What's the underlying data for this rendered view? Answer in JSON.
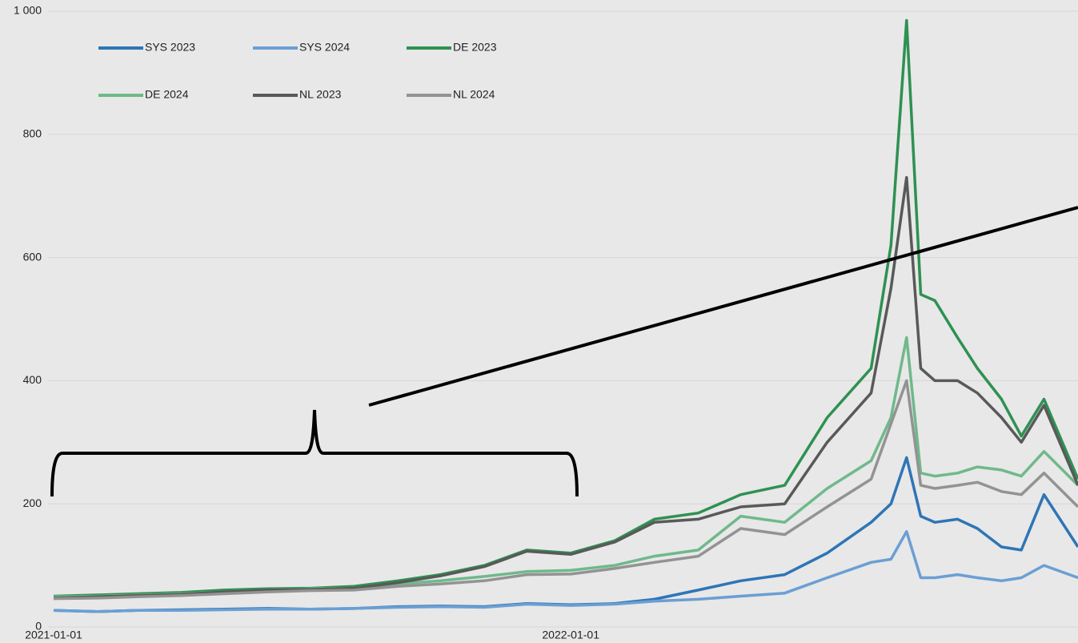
{
  "chart_data": {
    "type": "line",
    "x": [
      "2021-01-01",
      "2021-02-01",
      "2021-03-01",
      "2021-04-01",
      "2021-05-01",
      "2021-06-01",
      "2021-07-01",
      "2021-08-01",
      "2021-09-01",
      "2021-10-01",
      "2021-11-01",
      "2021-12-01",
      "2022-01-01",
      "2022-02-01",
      "2022-03-01",
      "2022-04-01",
      "2022-05-01",
      "2022-06-01",
      "2022-07-01",
      "2022-08-01",
      "2022-08-15",
      "2022-08-26",
      "2022-09-05",
      "2022-09-15",
      "2022-10-01",
      "2022-10-15",
      "2022-11-01",
      "2022-11-15",
      "2022-12-01",
      "2022-12-25"
    ],
    "series": [
      {
        "name": "SYS 2023",
        "color": "#2e75b6",
        "values": [
          27,
          25,
          27,
          28,
          29,
          30,
          29,
          30,
          33,
          34,
          33,
          38,
          36,
          38,
          45,
          60,
          75,
          85,
          120,
          170,
          200,
          275,
          180,
          170,
          175,
          160,
          130,
          125,
          215,
          130
        ]
      },
      {
        "name": "SYS 2024",
        "color": "#6a9fd4",
        "values": [
          27,
          25,
          27,
          27,
          28,
          29,
          29,
          30,
          32,
          33,
          32,
          37,
          35,
          37,
          42,
          45,
          50,
          55,
          80,
          105,
          110,
          155,
          80,
          80,
          85,
          80,
          75,
          80,
          100,
          80
        ]
      },
      {
        "name": "DE 2023",
        "color": "#2e9152",
        "values": [
          50,
          52,
          54,
          56,
          60,
          62,
          63,
          66,
          75,
          85,
          100,
          125,
          120,
          140,
          175,
          185,
          215,
          230,
          340,
          420,
          620,
          985,
          540,
          530,
          470,
          420,
          370,
          310,
          370,
          240
        ]
      },
      {
        "name": "DE 2024",
        "color": "#6fb98a",
        "values": [
          49,
          50,
          52,
          54,
          57,
          60,
          62,
          63,
          70,
          75,
          82,
          90,
          92,
          100,
          115,
          125,
          180,
          170,
          225,
          270,
          340,
          470,
          250,
          245,
          250,
          260,
          255,
          245,
          285,
          230
        ]
      },
      {
        "name": "NL 2023",
        "color": "#595959",
        "values": [
          47,
          49,
          51,
          53,
          57,
          60,
          61,
          63,
          72,
          83,
          98,
          123,
          118,
          138,
          170,
          175,
          195,
          200,
          300,
          380,
          550,
          730,
          420,
          400,
          400,
          380,
          340,
          300,
          360,
          230
        ]
      },
      {
        "name": "NL 2024",
        "color": "#939393",
        "values": [
          46,
          47,
          49,
          51,
          54,
          57,
          59,
          60,
          66,
          70,
          75,
          85,
          86,
          95,
          105,
          115,
          160,
          150,
          195,
          240,
          330,
          400,
          230,
          225,
          230,
          235,
          220,
          215,
          250,
          195
        ]
      }
    ],
    "xlim": [
      "2021-01-01",
      "2022-12-25"
    ],
    "xticks": [
      "2021-01-01",
      "2022-01-01"
    ],
    "ylim": [
      0,
      1000
    ],
    "yticks": [
      0,
      200,
      400,
      600,
      800,
      {
        "value": 1000,
        "label": "1 000"
      }
    ],
    "grid": true,
    "legend": "top-left"
  }
}
